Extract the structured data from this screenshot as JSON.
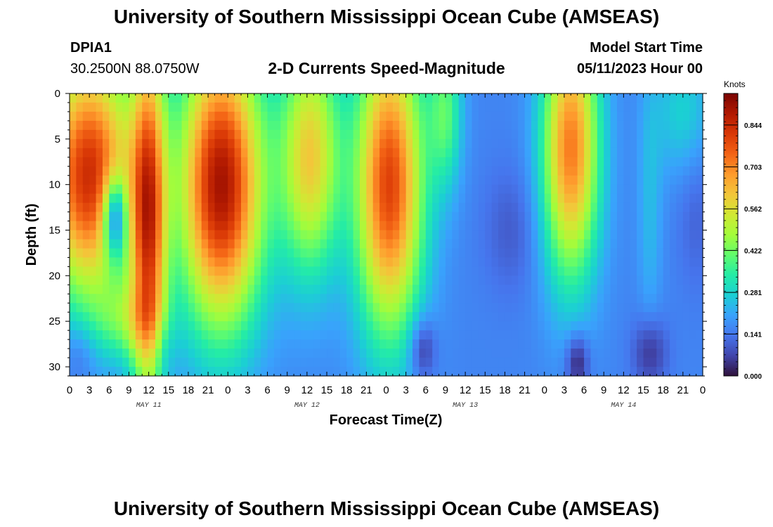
{
  "header": {
    "title": "University of Southern Mississippi Ocean Cube (AMSEAS)",
    "station_id": "DPIA1",
    "coordinates": "30.2500N  88.0750W",
    "chart_subtitle": "2-D Currents Speed-Magnitude",
    "model_start_label": "Model Start Time",
    "model_start_value": "05/11/2023 Hour 00"
  },
  "footer": {
    "title": "University of Southern Mississippi Ocean Cube (AMSEAS)"
  },
  "chart_data": {
    "type": "heatmap",
    "title": "2-D Currents Speed-Magnitude",
    "xlabel": "Forecast Time(Z)",
    "ylabel": "Depth (ft)",
    "x_tick_labels": [
      "0",
      "3",
      "6",
      "9",
      "12",
      "15",
      "18",
      "21",
      "0",
      "3",
      "6",
      "9",
      "12",
      "15",
      "18",
      "21",
      "0",
      "3",
      "6",
      "9",
      "12",
      "15",
      "18",
      "21",
      "0",
      "3",
      "6",
      "9",
      "12",
      "15",
      "18",
      "21",
      "0"
    ],
    "day_labels": [
      "MAY 11",
      "MAY 12",
      "MAY 13",
      "MAY 14"
    ],
    "y_ticks": [
      0,
      5,
      10,
      15,
      20,
      25,
      30
    ],
    "ylim": [
      0,
      31
    ],
    "xlim_hours": [
      0,
      96
    ],
    "colorbar": {
      "unit": "Knots",
      "tick_values": [
        0.0,
        0.141,
        0.281,
        0.422,
        0.562,
        0.703,
        0.844
      ],
      "tick_labels": [
        "0.000",
        "0.141",
        "0.281",
        "0.422",
        "0.562",
        "0.703",
        "0.844"
      ],
      "range": [
        0.0,
        0.95
      ],
      "colormap": [
        "#30123b",
        "#4145ab",
        "#4675ed",
        "#39a2fc",
        "#1bcfd4",
        "#24eca6",
        "#61fc6c",
        "#a4fc3b",
        "#d1e834",
        "#f3c63a",
        "#fe9b2d",
        "#f36315",
        "#d93806",
        "#b11901",
        "#7a0403"
      ]
    },
    "field_description": "Current speed magnitude (knots) vs forecast hour (0-96) and depth (0-31 ft)",
    "key_features": [
      {
        "hour_range": [
          0,
          9
        ],
        "depth_range": [
          0,
          22
        ],
        "speed": "0.6-0.9 (high)"
      },
      {
        "hour_range": [
          10,
          14
        ],
        "depth_range": [
          0,
          31
        ],
        "speed": "0.6-0.8 (high)"
      },
      {
        "hour_range": [
          19,
          28
        ],
        "depth_range": [
          0,
          24
        ],
        "speed": "0.7-0.9 (high)"
      },
      {
        "hour_range": [
          33,
          41
        ],
        "depth_range": [
          0,
          17
        ],
        "speed": "0.5-0.6"
      },
      {
        "hour_range": [
          45,
          53
        ],
        "depth_range": [
          0,
          23
        ],
        "speed": "0.6-0.8 (high)"
      },
      {
        "hour_range": [
          73,
          79
        ],
        "depth_range": [
          0,
          17
        ],
        "speed": "0.5-0.7"
      },
      {
        "hour_range": [
          52,
          54
        ],
        "depth_range": [
          26,
          30
        ],
        "speed": "0.02 (low)"
      },
      {
        "hour_range": [
          75,
          78
        ],
        "depth_range": [
          26,
          31
        ],
        "speed": "0.0 (low)"
      },
      {
        "hour_range": [
          86,
          90
        ],
        "depth_range": [
          26,
          31
        ],
        "speed": "0.03 (low)"
      }
    ]
  }
}
